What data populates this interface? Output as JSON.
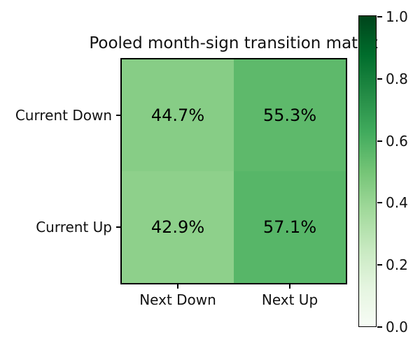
{
  "chart_data": {
    "type": "heatmap",
    "title": "Pooled month-sign transition matrix",
    "rows": [
      "Current Down",
      "Current Up"
    ],
    "cols": [
      "Next Down",
      "Next Up"
    ],
    "values": [
      [
        0.447,
        0.553
      ],
      [
        0.429,
        0.571
      ]
    ],
    "cell_labels": [
      [
        "44.7%",
        "55.3%"
      ],
      [
        "42.9%",
        "57.1%"
      ]
    ],
    "cell_colors": [
      [
        "#87cd86",
        "#5eb96b"
      ],
      [
        "#8ed08b",
        "#57b668"
      ]
    ],
    "grid": false,
    "colormap": {
      "name": "Greens",
      "stops": [
        "#f7fcf5",
        "#e5f5e0",
        "#c7e9c0",
        "#a1d99b",
        "#74c476",
        "#41ab5d",
        "#238b45",
        "#006d2c",
        "#00441b"
      ]
    },
    "colorbar": {
      "position": "right",
      "min": 0.0,
      "max": 1.0,
      "tick_labels": [
        "1.0",
        "0.8",
        "0.6",
        "0.4",
        "0.2",
        "0.0"
      ]
    },
    "text_color": "#111111",
    "spine_color": "#000000"
  }
}
